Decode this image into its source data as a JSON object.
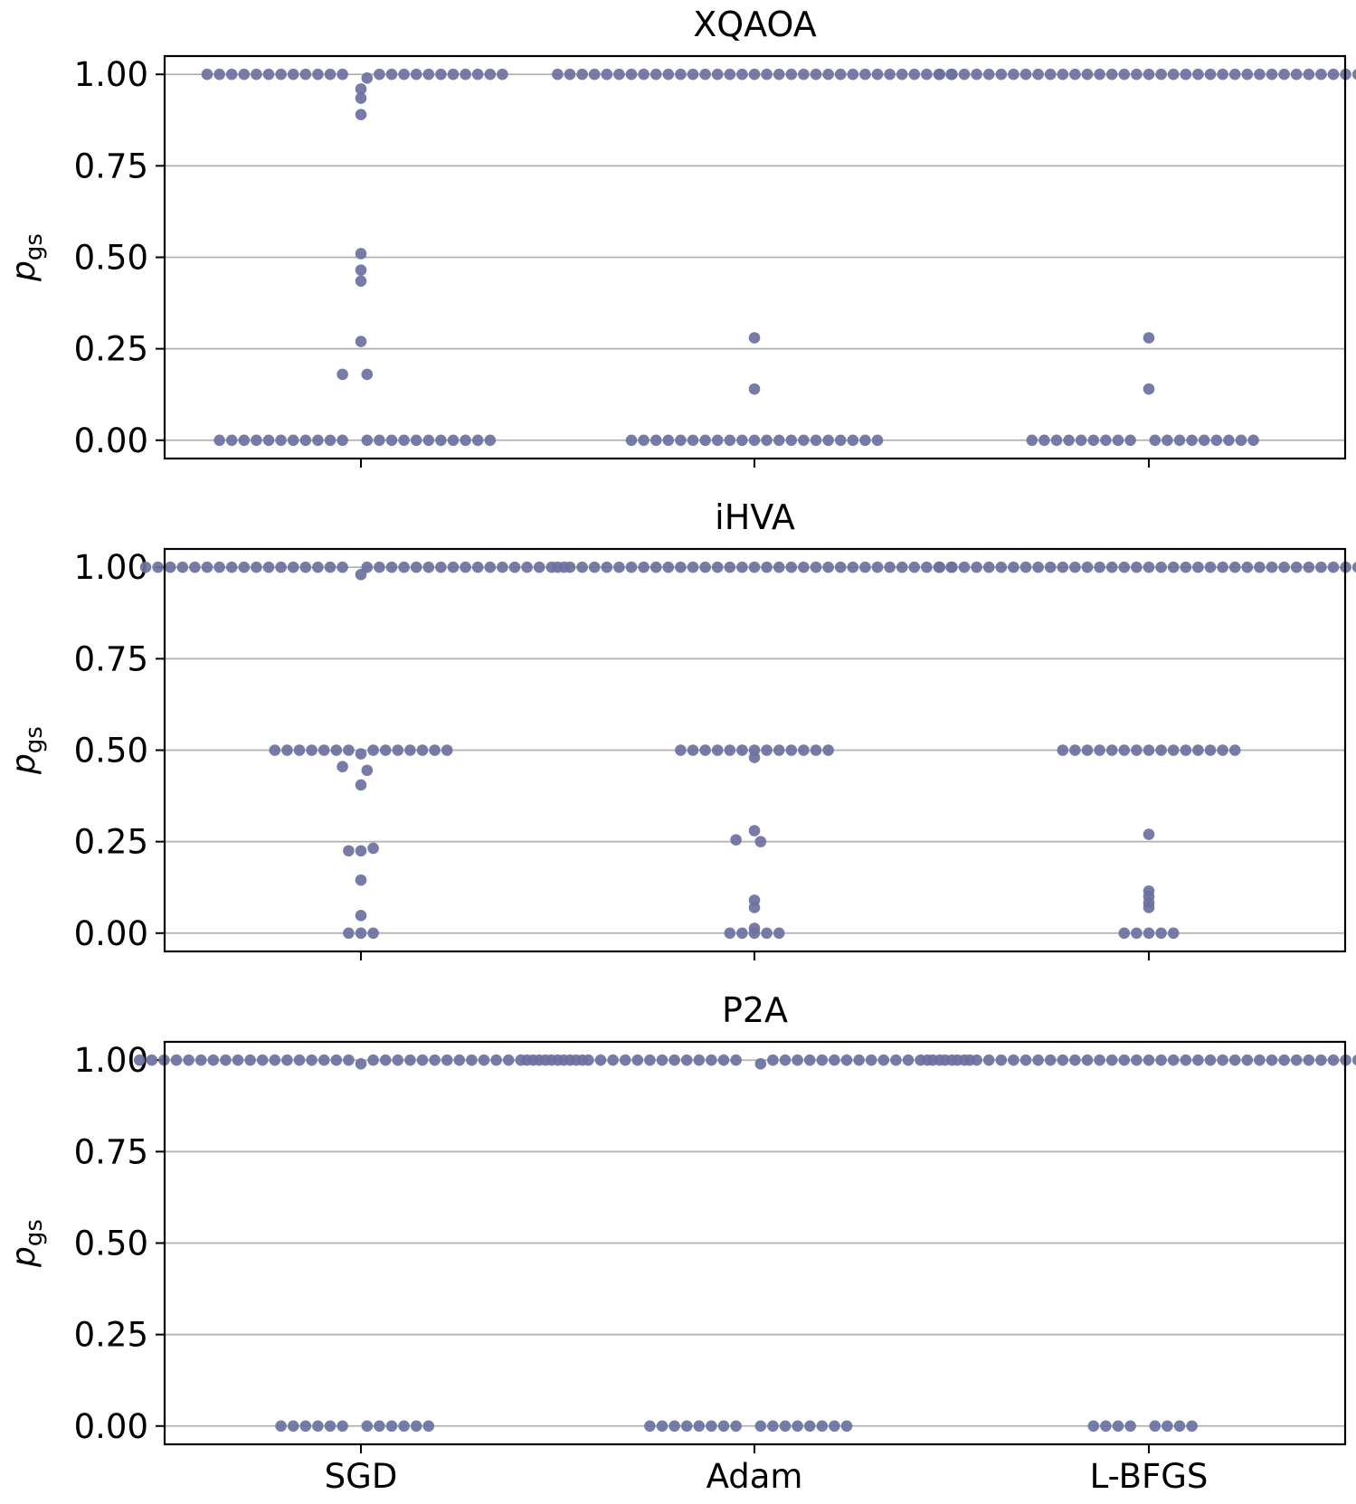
{
  "chart_data": {
    "type": "swarm",
    "ylabel": "p",
    "ylabel_subscript": "gs",
    "categories": [
      "SGD",
      "Adam",
      "L-BFGS"
    ],
    "yticks": [
      "1.00",
      "0.75",
      "0.50",
      "0.25",
      "0.00"
    ],
    "ylim": [
      -0.05,
      1.05
    ],
    "colors": {
      "point": "#6b70a0",
      "grid": "#b0b0b0"
    },
    "panels": [
      {
        "title": "XQAOA",
        "groups": [
          {
            "category": "SGD",
            "values": [
              1,
              1,
              1,
              1,
              1,
              1,
              1,
              1,
              1,
              1,
              1,
              1,
              1,
              1,
              1,
              1,
              1,
              1,
              1,
              1,
              1,
              1,
              1,
              0.99,
              0.96,
              0.935,
              0.89,
              0.51,
              0.465,
              0.435,
              0.27,
              0.18,
              0.18,
              0,
              0,
              0,
              0,
              0,
              0,
              0,
              0,
              0,
              0,
              0,
              0,
              0,
              0,
              0,
              0,
              0,
              0,
              0,
              0,
              0,
              0
            ]
          },
          {
            "category": "Adam",
            "values": [
              1,
              1,
              1,
              1,
              1,
              1,
              1,
              1,
              1,
              1,
              1,
              1,
              1,
              1,
              1,
              1,
              1,
              1,
              1,
              1,
              1,
              1,
              1,
              1,
              1,
              1,
              1,
              1,
              1,
              1,
              1,
              1,
              1,
              0.28,
              0.14,
              0,
              0,
              0,
              0,
              0,
              0,
              0,
              0,
              0,
              0,
              0,
              0,
              0,
              0,
              0,
              0,
              0,
              0,
              0,
              0,
              0
            ]
          },
          {
            "category": "L-BFGS",
            "values": [
              1,
              1,
              1,
              1,
              1,
              1,
              1,
              1,
              1,
              1,
              1,
              1,
              1,
              1,
              1,
              1,
              1,
              1,
              1,
              1,
              1,
              1,
              1,
              1,
              1,
              1,
              1,
              1,
              1,
              1,
              1,
              1,
              1,
              1,
              1,
              0.28,
              0.14,
              0,
              0,
              0,
              0,
              0,
              0,
              0,
              0,
              0,
              0,
              0,
              0,
              0,
              0,
              0,
              0,
              0,
              0
            ]
          }
        ]
      },
      {
        "title": "iHVA",
        "groups": [
          {
            "category": "SGD",
            "values": [
              1,
              1,
              1,
              1,
              1,
              1,
              1,
              1,
              1,
              1,
              1,
              1,
              1,
              1,
              1,
              1,
              1,
              1,
              1,
              1,
              1,
              1,
              1,
              1,
              1,
              1,
              1,
              1,
              1,
              1,
              1,
              1,
              1,
              1,
              0.98,
              0.5,
              0.5,
              0.5,
              0.5,
              0.5,
              0.5,
              0.5,
              0.5,
              0.5,
              0.5,
              0.5,
              0.5,
              0.5,
              0.5,
              0.49,
              0.455,
              0.445,
              0.405,
              0.232,
              0.225,
              0.225,
              0.145,
              0.048,
              0,
              0,
              0
            ]
          },
          {
            "category": "Adam",
            "values": [
              1,
              1,
              1,
              1,
              1,
              1,
              1,
              1,
              1,
              1,
              1,
              1,
              1,
              1,
              1,
              1,
              1,
              1,
              1,
              1,
              1,
              1,
              1,
              1,
              1,
              1,
              1,
              1,
              1,
              1,
              1,
              1,
              1,
              0.5,
              0.5,
              0.5,
              0.5,
              0.5,
              0.5,
              0.5,
              0.5,
              0.5,
              0.5,
              0.5,
              0.5,
              0.5,
              0.48,
              0.28,
              0.255,
              0.25,
              0.09,
              0.07,
              0.013,
              0,
              0,
              0,
              0,
              0
            ]
          },
          {
            "category": "L-BFGS",
            "values": [
              1,
              1,
              1,
              1,
              1,
              1,
              1,
              1,
              1,
              1,
              1,
              1,
              1,
              1,
              1,
              1,
              1,
              1,
              1,
              1,
              1,
              1,
              1,
              1,
              1,
              1,
              1,
              1,
              1,
              1,
              1,
              1,
              1,
              1,
              1,
              0.5,
              0.5,
              0.5,
              0.5,
              0.5,
              0.5,
              0.5,
              0.5,
              0.5,
              0.5,
              0.5,
              0.5,
              0.5,
              0.5,
              0.5,
              0.27,
              0.115,
              0.1,
              0.083,
              0.07,
              0,
              0,
              0,
              0,
              0
            ]
          }
        ]
      },
      {
        "title": "P2A",
        "groups": [
          {
            "category": "SGD",
            "values": [
              1,
              1,
              1,
              1,
              1,
              1,
              1,
              1,
              1,
              1,
              1,
              1,
              1,
              1,
              1,
              1,
              1,
              1,
              1,
              1,
              1,
              1,
              1,
              1,
              1,
              1,
              1,
              1,
              1,
              1,
              1,
              1,
              1,
              1,
              1,
              1,
              0.99,
              0,
              0,
              0,
              0,
              0,
              0,
              0,
              0,
              0,
              0,
              0,
              0
            ]
          },
          {
            "category": "Adam",
            "values": [
              1,
              1,
              1,
              1,
              1,
              1,
              1,
              1,
              1,
              1,
              1,
              1,
              1,
              1,
              1,
              1,
              1,
              1,
              1,
              1,
              1,
              1,
              1,
              1,
              1,
              1,
              1,
              1,
              1,
              1,
              1,
              1,
              1,
              1,
              1,
              0.99,
              0,
              0,
              0,
              0,
              0,
              0,
              0,
              0,
              0,
              0,
              0,
              0,
              0,
              0,
              0,
              0
            ]
          },
          {
            "category": "L-BFGS",
            "values": [
              1,
              1,
              1,
              1,
              1,
              1,
              1,
              1,
              1,
              1,
              1,
              1,
              1,
              1,
              1,
              1,
              1,
              1,
              1,
              1,
              1,
              1,
              1,
              1,
              1,
              1,
              1,
              1,
              1,
              1,
              1,
              1,
              1,
              1,
              1,
              1,
              1,
              0,
              0,
              0,
              0,
              0,
              0,
              0,
              0
            ]
          }
        ]
      }
    ]
  }
}
